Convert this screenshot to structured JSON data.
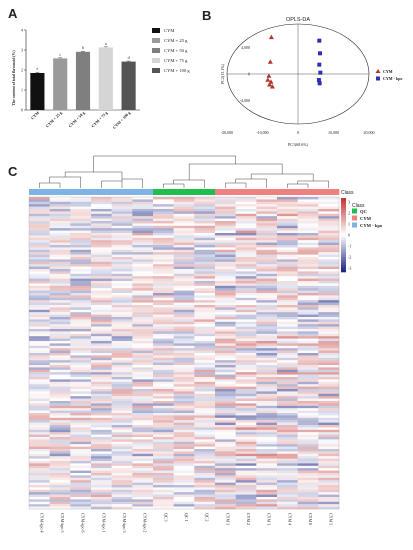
{
  "panels": {
    "a": "A",
    "b": "B",
    "c": "C"
  },
  "chart_data": [
    {
      "type": "bar",
      "panel": "A",
      "ylabel": "The content of total flavonoid (%)",
      "categories": [
        "CYM",
        "CYM + 25 g",
        "CYM + 50 g",
        "CYM + 75 g",
        "CYM + 100 g"
      ],
      "values": [
        1.85,
        2.58,
        2.91,
        3.13,
        2.42
      ],
      "errors": [
        0.04,
        0.03,
        0.03,
        0.03,
        0.03
      ],
      "letters": [
        "e",
        "c",
        "b",
        "a",
        "d"
      ],
      "colors": [
        "#111111",
        "#9a9a9a",
        "#7f7f7f",
        "#d5d5d5",
        "#555555"
      ],
      "yticks": [
        "0",
        "1",
        "2",
        "3",
        "4"
      ],
      "ylim": [
        0,
        4
      ],
      "legend": [
        "CYM",
        "CYM + 25 g",
        "CYM + 50 g",
        "CYM + 75 g",
        "CYM + 100 g"
      ]
    },
    {
      "type": "scatter",
      "panel": "B",
      "title": "OPLS-DA",
      "xlabel": "PC1(68.6%)",
      "ylabel": "PC2(13.1%)",
      "xticks": [
        "-20,000",
        "-10,000",
        "0",
        "10,000",
        "20,000"
      ],
      "yticks": [
        "4,000",
        "0",
        "-4,000"
      ],
      "xlim": [
        -20000,
        20000
      ],
      "ylim": [
        -7500,
        7500
      ],
      "series": [
        {
          "name": "CYM",
          "color": "#b0362c",
          "marker": "triangle",
          "points": [
            [
              -7500,
              5500
            ],
            [
              -7800,
              1800
            ],
            [
              -8200,
              -300
            ],
            [
              -8500,
              -900
            ],
            [
              -7600,
              -1200
            ],
            [
              -8000,
              -1600
            ],
            [
              -7200,
              -1900
            ]
          ]
        },
        {
          "name": "CYM - kpo",
          "color": "#2f2fb0",
          "marker": "square",
          "points": [
            [
              6000,
              5000
            ],
            [
              6200,
              3100
            ],
            [
              6000,
              1400
            ],
            [
              6300,
              200
            ],
            [
              5900,
              -900
            ],
            [
              6100,
              -1400
            ]
          ]
        }
      ]
    },
    {
      "type": "heatmap",
      "panel": "C",
      "columns": [
        "CYM-kpo 4",
        "CYM-kpo 5",
        "CYM-kpo 6",
        "CYM-kpo 1",
        "CYM-kpo 3",
        "CYM-kpo 2",
        "QC 3",
        "QC 1",
        "QC 2",
        "CYM 3",
        "CYM 2",
        "CYM 1",
        "CYM 4",
        "CYM 6",
        "CYM 5"
      ],
      "groups": [
        "CYM - kpo",
        "CYM - kpo",
        "CYM - kpo",
        "CYM - kpo",
        "CYM - kpo",
        "CYM - kpo",
        "QC",
        "QC",
        "QC",
        "CYM",
        "CYM",
        "CYM",
        "CYM",
        "CYM",
        "CYM"
      ],
      "color_scale_title": "Class",
      "color_scale_ticks": [
        "3",
        "2",
        "1",
        "0",
        "-1",
        "-2",
        "-3"
      ],
      "legend_title": "Class",
      "legend": [
        {
          "name": "QC",
          "color": "#1fbf4f"
        },
        {
          "name": "CYM",
          "color": "#f08080"
        },
        {
          "name": "CYM - kpo",
          "color": "#7fb3e6"
        }
      ]
    }
  ]
}
